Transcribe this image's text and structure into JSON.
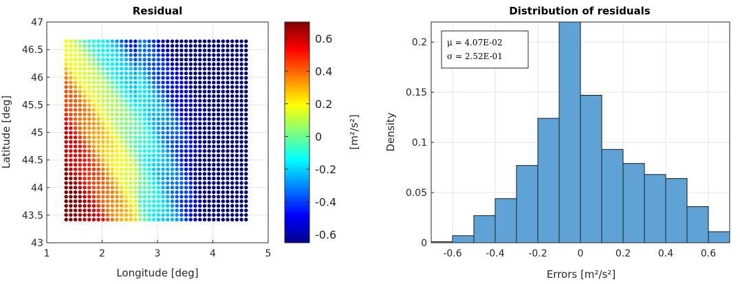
{
  "chart_data": [
    {
      "type": "scatter",
      "title": "Residual",
      "xlabel": "Longitude [deg]",
      "ylabel": "Latitude [deg]",
      "xlim": [
        1,
        5
      ],
      "ylim": [
        43,
        47
      ],
      "xticks": [
        1,
        2,
        3,
        4,
        5
      ],
      "yticks": [
        43,
        43.5,
        44,
        44.5,
        45,
        45.5,
        46,
        46.5,
        47
      ],
      "xtick_labels": [
        "1",
        "2",
        "3",
        "4",
        "5"
      ],
      "ytick_labels": [
        "43",
        "43.5",
        "44",
        "44.5",
        "45",
        "45.5",
        "46",
        "46.5",
        "47"
      ],
      "grid": true,
      "points": {
        "lon_range": [
          1.35,
          4.6
        ],
        "lat_range": [
          43.42,
          46.65
        ],
        "n_lon": 40,
        "n_lat": 40,
        "description_values": "residual field on a regular grid; high (~0.6) in south-west, low (~-0.6) in east"
      },
      "colorbar": {
        "colormap": "jet",
        "clim": [
          -0.65,
          0.7
        ],
        "ticks": [
          0.6,
          0.4,
          0.2,
          0,
          -0.2,
          -0.4,
          -0.6
        ],
        "tick_labels": [
          "0.6",
          "0.4",
          "0.2",
          "0",
          "-0.2",
          "-0.4",
          "-0.6"
        ],
        "label": "[m²/s²]"
      }
    },
    {
      "type": "bar",
      "title": "Distribution of residuals",
      "xlabel": "Errors [m²/s²]",
      "ylabel": "Density",
      "xlim": [
        -0.7,
        0.7
      ],
      "ylim": [
        0,
        0.22
      ],
      "xticks": [
        -0.6,
        -0.4,
        -0.2,
        0,
        0.2,
        0.4,
        0.6
      ],
      "yticks": [
        0,
        0.05,
        0.1,
        0.15,
        0.2
      ],
      "xtick_labels": [
        "-0.6",
        "-0.4",
        "-0.2",
        "0",
        "0.2",
        "0.4",
        "0.6"
      ],
      "ytick_labels": [
        "0",
        "0.05",
        "0.1",
        "0.15",
        "0.2"
      ],
      "grid": true,
      "bin_edges": [
        -0.7,
        -0.6,
        -0.5,
        -0.4,
        -0.3,
        -0.2,
        -0.1,
        0,
        0.1,
        0.2,
        0.3,
        0.4,
        0.5,
        0.6,
        0.7
      ],
      "values": [
        0.001,
        0.007,
        0.027,
        0.044,
        0.077,
        0.124,
        0.22,
        0.147,
        0.093,
        0.079,
        0.068,
        0.064,
        0.036,
        0.011
      ],
      "bar_color": "#5fa2d6",
      "legend_position": "top-left",
      "stats": {
        "mu_label": "μ = 4.07E-02",
        "sigma_label": "σ = 2.52E-01"
      }
    }
  ]
}
